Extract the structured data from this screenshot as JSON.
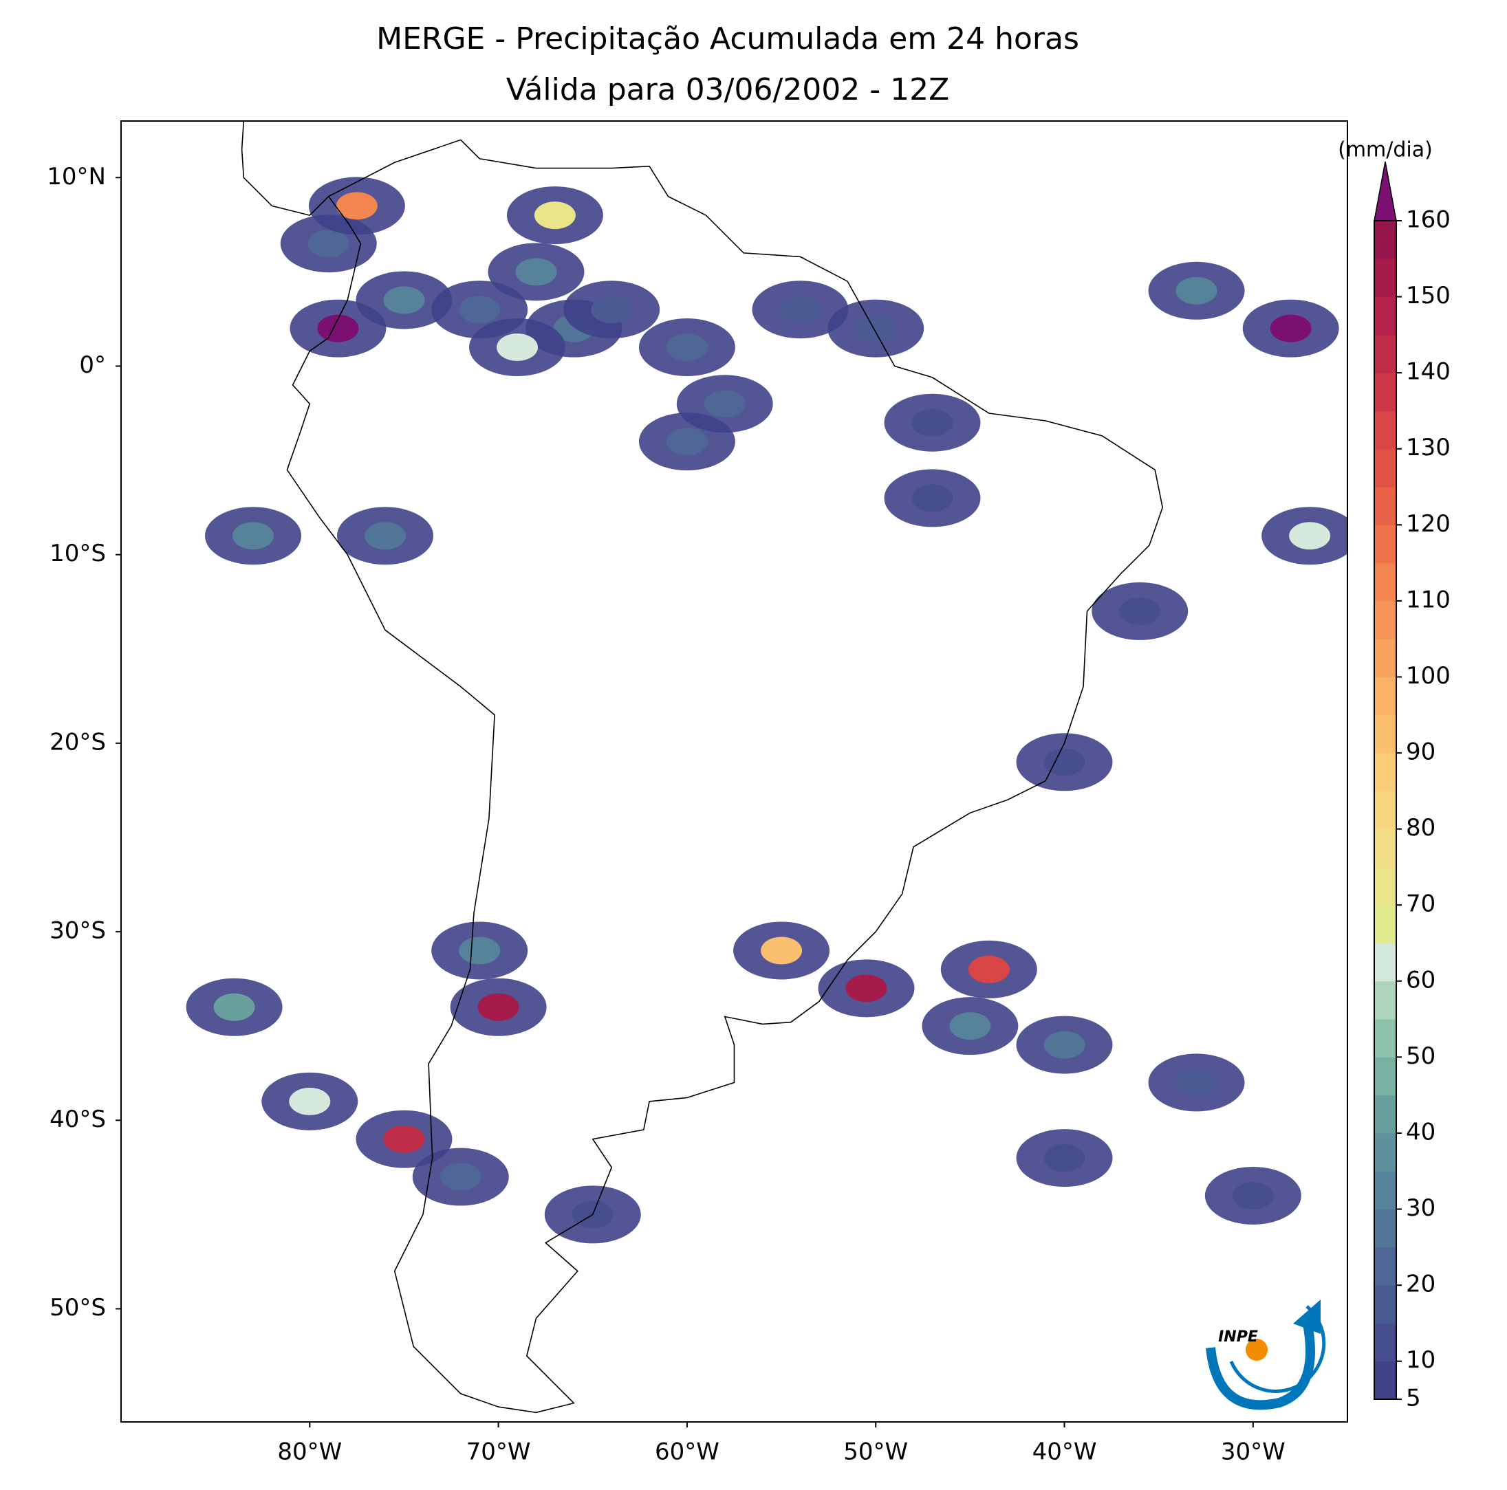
{
  "chart_data": {
    "type": "map",
    "title": "MERGE - Precipitação Acumulada em 24 horas",
    "subtitle": "Válida para 03/06/2002 - 12Z",
    "xlim": [
      -90,
      -25
    ],
    "ylim": [
      -56,
      13
    ],
    "xticks": [
      {
        "value": -80,
        "label": "80°W"
      },
      {
        "value": -70,
        "label": "70°W"
      },
      {
        "value": -60,
        "label": "60°W"
      },
      {
        "value": -50,
        "label": "50°W"
      },
      {
        "value": -40,
        "label": "40°W"
      },
      {
        "value": -30,
        "label": "30°W"
      }
    ],
    "yticks": [
      {
        "value": 10,
        "label": "10°N"
      },
      {
        "value": 0,
        "label": "0°"
      },
      {
        "value": -10,
        "label": "10°S"
      },
      {
        "value": -20,
        "label": "20°S"
      },
      {
        "value": -30,
        "label": "30°S"
      },
      {
        "value": -40,
        "label": "40°S"
      },
      {
        "value": -50,
        "label": "50°S"
      }
    ],
    "colorbar_label": "(mm/dia)",
    "clim": [
      5,
      160
    ],
    "cticks": [
      5,
      10,
      20,
      30,
      40,
      50,
      60,
      70,
      80,
      90,
      100,
      110,
      120,
      130,
      140,
      150,
      160
    ],
    "colors": [
      "#40438a",
      "#464e8e",
      "#4a5a92",
      "#4f6796",
      "#527598",
      "#56839a",
      "#5e919b",
      "#68a09d",
      "#78b0a2",
      "#8ec1aa",
      "#aed4bc",
      "#d4e8dc",
      "#e2ea8e",
      "#ebe58a",
      "#f2de86",
      "#f7d680",
      "#fbcd79",
      "#fbc06f",
      "#fab266",
      "#f8a45e",
      "#f69557",
      "#f38551",
      "#ef744b",
      "#e96348",
      "#e15346",
      "#d74546",
      "#cc3847",
      "#c02d49",
      "#b3234b",
      "#a51b4c",
      "#97154d"
    ],
    "over_color": "#7c1072",
    "cells": [
      {
        "lon": -67,
        "lat": 8,
        "mm": 70
      },
      {
        "lon": -68,
        "lat": 5,
        "mm": 30
      },
      {
        "lon": -66,
        "lat": 2,
        "mm": 25
      },
      {
        "lon": -71,
        "lat": 3,
        "mm": 20
      },
      {
        "lon": -69,
        "lat": 1,
        "mm": 60
      },
      {
        "lon": -75,
        "lat": 3.5,
        "mm": 30
      },
      {
        "lon": -78.5,
        "lat": 2,
        "mm": 160
      },
      {
        "lon": -79,
        "lat": 6.5,
        "mm": 20
      },
      {
        "lon": -77.5,
        "lat": 8.5,
        "mm": 110
      },
      {
        "lon": -60,
        "lat": 1,
        "mm": 20
      },
      {
        "lon": -58,
        "lat": -2,
        "mm": 20
      },
      {
        "lon": -60,
        "lat": -4,
        "mm": 20
      },
      {
        "lon": -54,
        "lat": 3,
        "mm": 15
      },
      {
        "lon": -50,
        "lat": 2,
        "mm": 15
      },
      {
        "lon": -47,
        "lat": -3,
        "mm": 10
      },
      {
        "lon": -64,
        "lat": 3,
        "mm": 15
      },
      {
        "lon": -83,
        "lat": -9,
        "mm": 30
      },
      {
        "lon": -76,
        "lat": -9,
        "mm": 25
      },
      {
        "lon": -84,
        "lat": -34,
        "mm": 40
      },
      {
        "lon": -80,
        "lat": -39,
        "mm": 60
      },
      {
        "lon": -75,
        "lat": -41,
        "mm": 140
      },
      {
        "lon": -70,
        "lat": -34,
        "mm": 150
      },
      {
        "lon": -71,
        "lat": -31,
        "mm": 30
      },
      {
        "lon": -55,
        "lat": -31,
        "mm": 90
      },
      {
        "lon": -50.5,
        "lat": -33,
        "mm": 150
      },
      {
        "lon": -44,
        "lat": -32,
        "mm": 130
      },
      {
        "lon": -45,
        "lat": -35,
        "mm": 30
      },
      {
        "lon": -40,
        "lat": -36,
        "mm": 25
      },
      {
        "lon": -33,
        "lat": -38,
        "mm": 15
      },
      {
        "lon": -40,
        "lat": -42,
        "mm": 10
      },
      {
        "lon": -30,
        "lat": -44,
        "mm": 10
      },
      {
        "lon": -72,
        "lat": -43,
        "mm": 20
      },
      {
        "lon": -65,
        "lat": -45,
        "mm": 10
      },
      {
        "lon": -33,
        "lat": 4,
        "mm": 30
      },
      {
        "lon": -28,
        "lat": 2,
        "mm": 160
      },
      {
        "lon": -27,
        "lat": -9,
        "mm": 60
      },
      {
        "lon": -36,
        "lat": -13,
        "mm": 10
      },
      {
        "lon": -40,
        "lat": -21,
        "mm": 10
      },
      {
        "lon": -47,
        "lat": -7,
        "mm": 10
      }
    ]
  },
  "logo": "INPE"
}
